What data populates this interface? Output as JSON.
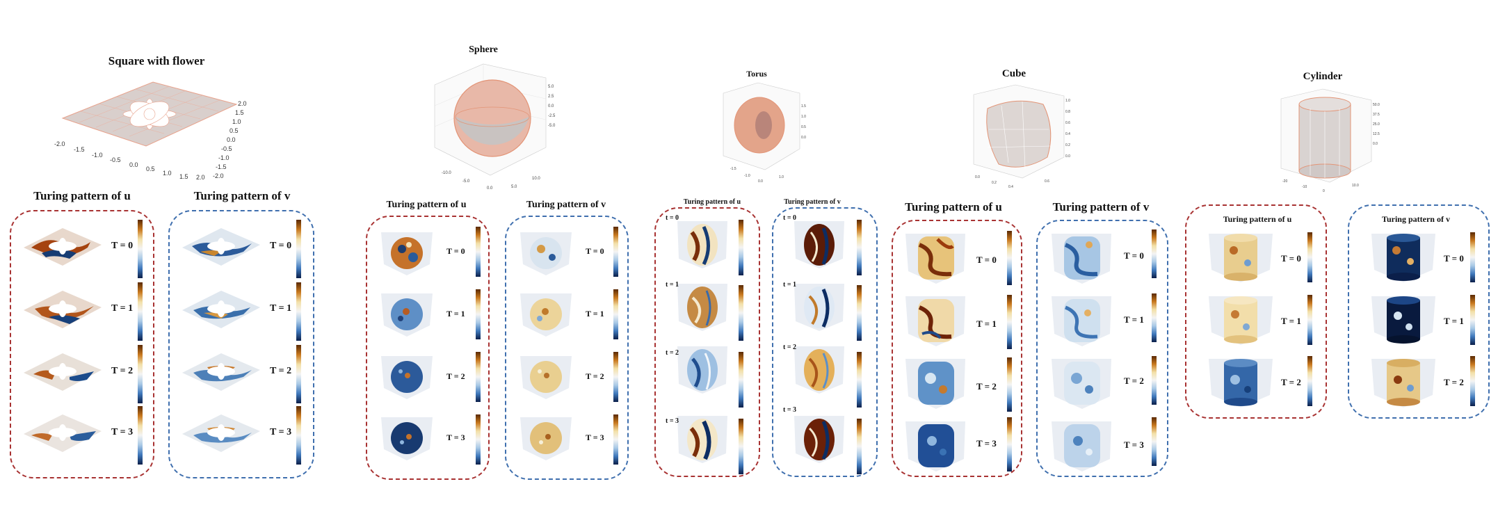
{
  "shapes": [
    {
      "name": "square-with-flower",
      "title": "Square with flower",
      "u_title": "Turing pattern of u",
      "v_title": "Turing pattern of v",
      "u_labels": [
        "T = 0",
        "T = 1",
        "T = 2",
        "T = 3"
      ],
      "v_labels": [
        "T = 0",
        "T = 1",
        "T = 2",
        "T = 3"
      ],
      "axis_ticks_x": [
        "-2.0",
        "-1.5",
        "-1.0",
        "-0.5",
        "0.0",
        "0.5",
        "1.0",
        "1.5",
        "2.0"
      ],
      "axis_ticks_y": [
        "2.0",
        "1.5",
        "1.0",
        "0.5",
        "0.0",
        "-0.5",
        "-1.0",
        "-1.5",
        "-2.0"
      ]
    },
    {
      "name": "sphere",
      "title": "Sphere",
      "u_title": "Turing pattern of u",
      "v_title": "Turing pattern of v",
      "u_labels": [
        "T = 0",
        "T = 1",
        "T = 2",
        "T = 3"
      ],
      "v_labels": [
        "T = 0",
        "T = 1",
        "T = 2",
        "T = 3"
      ]
    },
    {
      "name": "torus",
      "title": "Torus",
      "u_title": "Turing pattern of u",
      "v_title": "Turing pattern of v",
      "u_labels": [
        "t = 0",
        "t = 1",
        "t = 2",
        "t = 3"
      ],
      "v_labels": [
        "t = 0",
        "t = 1",
        "t = 2",
        "t = 3"
      ]
    },
    {
      "name": "cube",
      "title": "Cube",
      "u_title": "Turing pattern of u",
      "v_title": "Turing pattern of v",
      "u_labels": [
        "T = 0",
        "T = 1",
        "T = 2",
        "T = 3"
      ],
      "v_labels": [
        "T = 0",
        "T = 1",
        "T = 2",
        "T = 3"
      ]
    },
    {
      "name": "cylinder",
      "title": "Cylinder",
      "u_title": "Turing pattern of u",
      "v_title": "Turing pattern of v",
      "u_labels": [
        "T = 0",
        "T = 1",
        "T = 2"
      ],
      "v_labels": [
        "T = 0",
        "T = 1",
        "T = 2"
      ]
    }
  ],
  "colors": {
    "u_border": "#a83232",
    "v_border": "#3f6fae",
    "mesh_edge": "#e8a28c",
    "mesh_fill": "#ddd6d3"
  }
}
